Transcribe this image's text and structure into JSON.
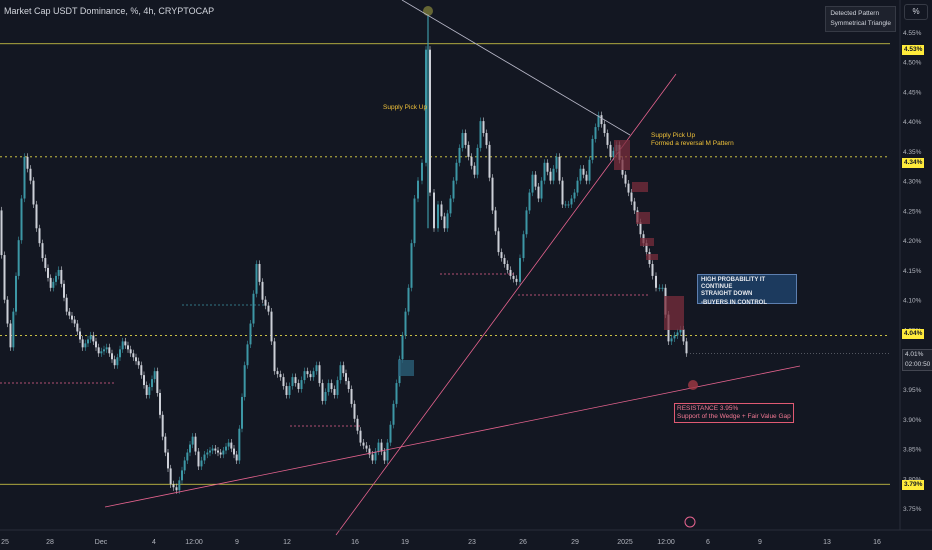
{
  "header": {
    "title": "Market Cap USDT Dominance, %, 4h, CRYPTOCAP",
    "detected_label": "Detected Pattern",
    "pattern_label": "Symmetrical Triangle",
    "currency": "%"
  },
  "colors": {
    "background": "#131722",
    "bull": "#3d97a5",
    "bear": "#cdd0d8",
    "yellow_level": "#e3d949",
    "trend_line": "#e5638e",
    "grid_text": "#b2b5be"
  },
  "price_tags": {
    "level_453": "4.53%",
    "level_434": "4.34%",
    "level_404": "4.04%",
    "last_price": "4.01%",
    "countdown": "02:00:50",
    "level_379": "3.79%"
  },
  "annotations": {
    "supply_1": "Supply Pick Up",
    "supply_2_line1": "Supply Pick Up",
    "supply_2_line2": "Formed a reversal M Pattern",
    "probability_line1": "HIGH PROBABILITY IT CONTINUE",
    "probability_line2": "STRAIGHT DOWN",
    "probability_line3": "-BUYERS IN CONTROL",
    "resistance_line1": "RESISTANCE 3.95%",
    "resistance_line2": "Support of the Wedge + Fair Value Gap"
  },
  "chart_data": {
    "type": "candlestick",
    "title": "Market Cap USDT Dominance, %, 4h, CRYPTOCAP",
    "ylim": [
      3.73,
      4.59
    ],
    "y_ticks": [
      "4.55%",
      "4.50%",
      "4.45%",
      "4.40%",
      "4.35%",
      "4.30%",
      "4.25%",
      "4.20%",
      "4.15%",
      "4.10%",
      "4.05%",
      "4.00%",
      "3.95%",
      "3.90%",
      "3.85%",
      "3.80%",
      "3.75%"
    ],
    "x_ticks": [
      "25",
      "28",
      "Dec",
      "4",
      "12:00",
      "9",
      "12",
      "16",
      "19",
      "23",
      "26",
      "29",
      "2025",
      "12:00",
      "6",
      "9",
      "13",
      "16"
    ],
    "horizontal_levels": [
      4.53,
      4.34,
      4.04,
      3.79
    ],
    "last_price": 4.01,
    "series": [
      {
        "points": [
          [
            0,
            4.25
          ],
          [
            6,
            4.1
          ],
          [
            12,
            4.02
          ],
          [
            20,
            4.2
          ],
          [
            26,
            4.34
          ],
          [
            32,
            4.3
          ],
          [
            38,
            4.22
          ],
          [
            44,
            4.17
          ],
          [
            52,
            4.12
          ],
          [
            60,
            4.15
          ],
          [
            68,
            4.08
          ],
          [
            76,
            4.06
          ],
          [
            84,
            4.02
          ],
          [
            92,
            4.04
          ],
          [
            100,
            4.01
          ],
          [
            108,
            4.02
          ],
          [
            116,
            3.99
          ],
          [
            124,
            4.03
          ],
          [
            132,
            4.01
          ],
          [
            140,
            3.99
          ],
          [
            148,
            3.94
          ],
          [
            156,
            3.98
          ],
          [
            164,
            3.87
          ],
          [
            172,
            3.79
          ],
          [
            178,
            3.78
          ],
          [
            186,
            3.83
          ],
          [
            194,
            3.87
          ],
          [
            200,
            3.82
          ],
          [
            206,
            3.84
          ],
          [
            214,
            3.85
          ],
          [
            222,
            3.84
          ],
          [
            230,
            3.86
          ],
          [
            238,
            3.83
          ],
          [
            246,
            3.99
          ],
          [
            252,
            4.06
          ],
          [
            258,
            4.16
          ],
          [
            264,
            4.1
          ],
          [
            270,
            4.08
          ],
          [
            276,
            3.98
          ],
          [
            282,
            3.97
          ],
          [
            288,
            3.94
          ],
          [
            294,
            3.97
          ],
          [
            300,
            3.95
          ],
          [
            306,
            3.98
          ],
          [
            312,
            3.97
          ],
          [
            318,
            3.99
          ],
          [
            324,
            3.93
          ],
          [
            330,
            3.96
          ],
          [
            336,
            3.94
          ],
          [
            342,
            3.99
          ],
          [
            350,
            3.95
          ],
          [
            356,
            3.9
          ],
          [
            362,
            3.86
          ],
          [
            368,
            3.85
          ],
          [
            374,
            3.83
          ],
          [
            380,
            3.86
          ],
          [
            386,
            3.83
          ],
          [
            392,
            3.89
          ],
          [
            398,
            3.96
          ],
          [
            404,
            4.04
          ],
          [
            410,
            4.12
          ],
          [
            416,
            4.27
          ],
          [
            420,
            4.3
          ],
          [
            424,
            4.33
          ],
          [
            428,
            4.52
          ],
          [
            432,
            4.28
          ],
          [
            436,
            4.22
          ],
          [
            440,
            4.26
          ],
          [
            446,
            4.22
          ],
          [
            452,
            4.27
          ],
          [
            458,
            4.33
          ],
          [
            464,
            4.38
          ],
          [
            470,
            4.34
          ],
          [
            476,
            4.31
          ],
          [
            482,
            4.4
          ],
          [
            488,
            4.36
          ],
          [
            494,
            4.25
          ],
          [
            500,
            4.18
          ],
          [
            506,
            4.16
          ],
          [
            512,
            4.14
          ],
          [
            518,
            4.13
          ],
          [
            522,
            4.17
          ],
          [
            528,
            4.25
          ],
          [
            534,
            4.31
          ],
          [
            540,
            4.27
          ],
          [
            546,
            4.33
          ],
          [
            552,
            4.3
          ],
          [
            558,
            4.34
          ],
          [
            564,
            4.26
          ],
          [
            570,
            4.26
          ],
          [
            576,
            4.28
          ],
          [
            582,
            4.32
          ],
          [
            588,
            4.3
          ],
          [
            594,
            4.37
          ],
          [
            600,
            4.41
          ],
          [
            606,
            4.38
          ],
          [
            612,
            4.34
          ],
          [
            618,
            4.36
          ],
          [
            624,
            4.31
          ],
          [
            630,
            4.28
          ],
          [
            636,
            4.25
          ],
          [
            642,
            4.21
          ],
          [
            648,
            4.18
          ],
          [
            654,
            4.14
          ],
          [
            658,
            4.12
          ],
          [
            664,
            4.12
          ],
          [
            670,
            4.03
          ],
          [
            676,
            4.04
          ],
          [
            682,
            4.05
          ],
          [
            688,
            4.01
          ]
        ]
      }
    ]
  }
}
